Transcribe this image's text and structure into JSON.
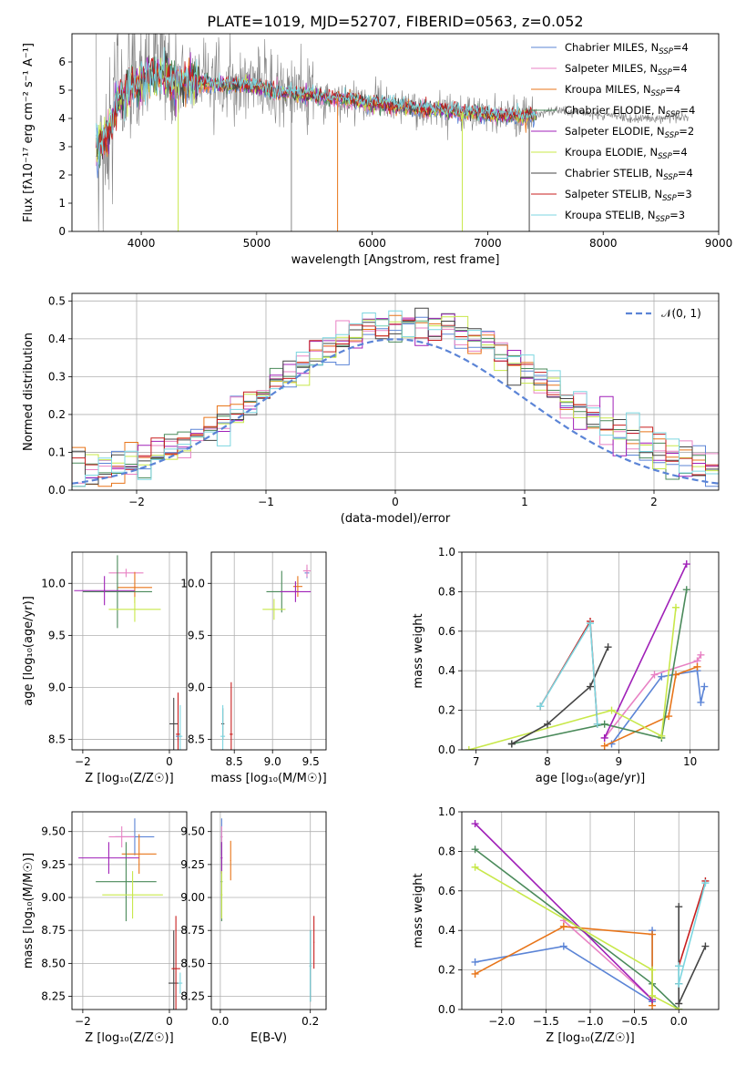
{
  "figure_title": "PLATE=1019, MJD=52707, FIBERID=0563, z=0.052",
  "colors": {
    "Chabrier MILES": "#5b84d6",
    "Salpeter MILES": "#e882c4",
    "Kroupa MILES": "#e8751a",
    "Chabrier ELODIE": "#4a8a5a",
    "Salpeter ELODIE": "#a020b8",
    "Kroupa ELODIE": "#c8e84a",
    "Chabrier STELIB": "#444444",
    "Salpeter STELIB": "#c81e1e",
    "Kroupa STELIB": "#7cd6e0",
    "data": "#808080",
    "grid": "#b0b0b0"
  },
  "chart_data": [
    {
      "id": "spectrum",
      "type": "line",
      "title": "PLATE=1019, MJD=52707, FIBERID=0563, z=0.052",
      "xlabel": "wavelength [Angstrom, rest frame]",
      "ylabel": "Flux [fλ10⁻¹⁷ erg cm⁻² s⁻¹ A⁻¹]",
      "xlim": [
        3400,
        9000
      ],
      "ylim": [
        0,
        7
      ],
      "xticks": [
        4000,
        5000,
        6000,
        7000,
        8000,
        9000
      ],
      "yticks": [
        0,
        1,
        2,
        3,
        4,
        5,
        6
      ],
      "grid": false,
      "legend_location": "upper right",
      "legend": [
        {
          "label": "Chabrier MILES, N",
          "sub": "SSP",
          "tail": "=4",
          "model": "Chabrier MILES"
        },
        {
          "label": "Salpeter MILES, N",
          "sub": "SSP",
          "tail": "=4",
          "model": "Salpeter MILES"
        },
        {
          "label": "Kroupa MILES, N",
          "sub": "SSP",
          "tail": "=4",
          "model": "Kroupa MILES"
        },
        {
          "label": "Chabrier ELODIE, N",
          "sub": "SSP",
          "tail": "=4",
          "model": "Chabrier ELODIE"
        },
        {
          "label": "Salpeter ELODIE, N",
          "sub": "SSP",
          "tail": "=2",
          "model": "Salpeter ELODIE"
        },
        {
          "label": "Kroupa ELODIE, N",
          "sub": "SSP",
          "tail": "=4",
          "model": "Kroupa ELODIE"
        },
        {
          "label": "Chabrier STELIB, N",
          "sub": "SSP",
          "tail": "=4",
          "model": "Chabrier STELIB"
        },
        {
          "label": "Salpeter STELIB, N",
          "sub": "SSP",
          "tail": "=3",
          "model": "Salpeter STELIB"
        },
        {
          "label": "Kroupa STELIB, N",
          "sub": "SSP",
          "tail": "=3",
          "model": "Kroupa STELIB"
        }
      ],
      "continuum": [
        [
          3610,
          3.0
        ],
        [
          3700,
          3.3
        ],
        [
          3800,
          4.6
        ],
        [
          3900,
          5.1
        ],
        [
          4000,
          5.2
        ],
        [
          4100,
          5.5
        ],
        [
          4200,
          5.6
        ],
        [
          4300,
          5.2
        ],
        [
          4400,
          5.4
        ],
        [
          4500,
          5.3
        ],
        [
          4600,
          5.2
        ],
        [
          4700,
          5.2
        ],
        [
          4800,
          5.2
        ],
        [
          4900,
          5.2
        ],
        [
          5000,
          5.1
        ],
        [
          5100,
          5.0
        ],
        [
          5200,
          4.9
        ],
        [
          5300,
          4.9
        ],
        [
          5400,
          4.85
        ],
        [
          5500,
          4.8
        ],
        [
          5600,
          4.75
        ],
        [
          5700,
          4.7
        ],
        [
          5800,
          4.65
        ],
        [
          5900,
          4.55
        ],
        [
          6000,
          4.55
        ],
        [
          6100,
          4.5
        ],
        [
          6200,
          4.45
        ],
        [
          6300,
          4.4
        ],
        [
          6400,
          4.35
        ],
        [
          6500,
          4.3
        ],
        [
          6600,
          4.3
        ],
        [
          6700,
          4.25
        ],
        [
          6800,
          4.2
        ],
        [
          6900,
          4.2
        ],
        [
          7000,
          4.15
        ],
        [
          7100,
          4.1
        ],
        [
          7200,
          4.1
        ],
        [
          7300,
          4.05
        ],
        [
          7400,
          4.1
        ],
        [
          7500,
          4.2
        ],
        [
          7600,
          4.3
        ],
        [
          7700,
          4.25
        ],
        [
          7800,
          4.2
        ],
        [
          7900,
          4.15
        ],
        [
          8000,
          4.1
        ],
        [
          8100,
          4.1
        ],
        [
          8200,
          4.05
        ],
        [
          8300,
          4.0
        ],
        [
          8400,
          4.0
        ],
        [
          8500,
          4.0
        ],
        [
          8600,
          4.05
        ],
        [
          8700,
          4.0
        ],
        [
          8740,
          4.0
        ]
      ],
      "model_range": [
        3610,
        7420
      ],
      "spikes": [
        [
          4320,
          0
        ],
        [
          5300,
          0
        ],
        [
          5700,
          0
        ],
        [
          6780,
          0
        ],
        [
          7360,
          0
        ]
      ]
    },
    {
      "id": "residuals",
      "type": "step",
      "xlabel": "(data-model)/error",
      "ylabel": "Normed distribution",
      "xlim": [
        -2.5,
        2.5
      ],
      "ylim": [
        0,
        0.52
      ],
      "xticks": [
        -2,
        -1,
        0,
        1,
        2
      ],
      "yticks": [
        0.0,
        0.1,
        0.2,
        0.3,
        0.4,
        0.5
      ],
      "grid": true,
      "legend_location": "upper right",
      "reference_label": "𝒩(0, 1)",
      "bins": 49,
      "models": [
        "Chabrier MILES",
        "Salpeter MILES",
        "Kroupa MILES",
        "Chabrier ELODIE",
        "Salpeter ELODIE",
        "Kroupa ELODIE",
        "Chabrier STELIB",
        "Salpeter STELIB",
        "Kroupa STELIB"
      ]
    },
    {
      "id": "age_vs_Z",
      "type": "errorbar",
      "xlabel": "Z [log₁₀(Z/Z☉)]",
      "ylabel": "age  [log₁₀(age/yr)]",
      "xlim": [
        -2.25,
        0.4
      ],
      "ylim": [
        8.4,
        10.3
      ],
      "xticks": [
        -2,
        0
      ],
      "yticks": [
        8.5,
        9.0,
        9.5,
        10.0
      ],
      "grid": true,
      "points": [
        {
          "model": "Chabrier MILES",
          "x": 0.2,
          "xerr": 0.05,
          "y": 8.53,
          "yerr": 0.05
        },
        {
          "model": "Salpeter MILES",
          "x": -1.0,
          "xerr": 0.4,
          "y": 10.1,
          "yerr": 0.04
        },
        {
          "model": "Kroupa MILES",
          "x": -0.8,
          "xerr": 0.4,
          "y": 9.96,
          "yerr": 0.15
        },
        {
          "model": "Chabrier ELODIE",
          "x": -1.2,
          "xerr": 0.8,
          "y": 9.92,
          "yerr": 0.35
        },
        {
          "model": "Salpeter ELODIE",
          "x": -1.5,
          "xerr": 0.7,
          "y": 9.93,
          "yerr": 0.14
        },
        {
          "model": "Kroupa ELODIE",
          "x": -0.8,
          "xerr": 0.6,
          "y": 9.75,
          "yerr": 0.12
        },
        {
          "model": "Chabrier STELIB",
          "x": 0.1,
          "xerr": 0.1,
          "y": 8.65,
          "yerr": 0.25
        },
        {
          "model": "Salpeter STELIB",
          "x": 0.2,
          "xerr": 0.05,
          "y": 8.55,
          "yerr": 0.4
        },
        {
          "model": "Kroupa STELIB",
          "x": 0.25,
          "xerr": 0.05,
          "y": 8.53,
          "yerr": 0.3
        }
      ]
    },
    {
      "id": "age_vs_mass",
      "type": "errorbar",
      "xlabel": "mass [log₁₀(M/M☉)]",
      "ylabel": "",
      "xlim": [
        8.2,
        9.7
      ],
      "ylim": [
        8.4,
        10.3
      ],
      "xticks": [
        8.5,
        9.0,
        9.5
      ],
      "yticks": [
        8.5,
        9.0,
        9.5,
        10.0
      ],
      "grid": true,
      "points": [
        {
          "model": "Chabrier MILES",
          "x": 9.45,
          "xerr": 0.03,
          "y": 10.1,
          "yerr": 0.05
        },
        {
          "model": "Salpeter MILES",
          "x": 9.45,
          "xerr": 0.05,
          "y": 10.12,
          "yerr": 0.06
        },
        {
          "model": "Kroupa MILES",
          "x": 9.33,
          "xerr": 0.06,
          "y": 9.97,
          "yerr": 0.1
        },
        {
          "model": "Chabrier ELODIE",
          "x": 9.12,
          "xerr": 0.2,
          "y": 9.92,
          "yerr": 0.2
        },
        {
          "model": "Salpeter ELODIE",
          "x": 9.3,
          "xerr": 0.2,
          "y": 9.92,
          "yerr": 0.1
        },
        {
          "model": "Kroupa ELODIE",
          "x": 9.02,
          "xerr": 0.15,
          "y": 9.75,
          "yerr": 0.1
        },
        {
          "model": "Chabrier STELIB",
          "x": 8.35,
          "xerr": 0.02,
          "y": 8.65,
          "yerr": 0.15
        },
        {
          "model": "Salpeter STELIB",
          "x": 8.46,
          "xerr": 0.02,
          "y": 8.55,
          "yerr": 0.5
        },
        {
          "model": "Kroupa STELIB",
          "x": 8.35,
          "xerr": 0.03,
          "y": 8.53,
          "yerr": 0.3
        }
      ]
    },
    {
      "id": "mass_weight_vs_age",
      "type": "line",
      "xlabel": "age  [log₁₀(age/yr)]",
      "ylabel": "mass weight",
      "xlim": [
        6.8,
        10.4
      ],
      "ylim": [
        0,
        1
      ],
      "xticks": [
        7,
        8,
        9,
        10
      ],
      "yticks": [
        0.0,
        0.2,
        0.4,
        0.6,
        0.8,
        1.0
      ],
      "grid": true,
      "series": [
        {
          "model": "Chabrier MILES",
          "x": [
            8.9,
            9.6,
            10.1,
            10.15,
            10.2
          ],
          "y": [
            0.03,
            0.37,
            0.4,
            0.24,
            0.32
          ]
        },
        {
          "model": "Salpeter MILES",
          "x": [
            8.8,
            9.5,
            10.1,
            10.15
          ],
          "y": [
            0.06,
            0.38,
            0.45,
            0.48
          ]
        },
        {
          "model": "Kroupa MILES",
          "x": [
            8.8,
            9.7,
            9.8,
            10.1
          ],
          "y": [
            0.02,
            0.17,
            0.38,
            0.42
          ]
        },
        {
          "model": "Chabrier ELODIE",
          "x": [
            7.5,
            8.8,
            9.6,
            9.95
          ],
          "y": [
            0.03,
            0.13,
            0.06,
            0.81
          ]
        },
        {
          "model": "Salpeter ELODIE",
          "x": [
            8.8,
            9.95
          ],
          "y": [
            0.06,
            0.94
          ]
        },
        {
          "model": "Kroupa ELODIE",
          "x": [
            6.9,
            8.9,
            9.6,
            9.8
          ],
          "y": [
            0.0,
            0.2,
            0.07,
            0.72
          ]
        },
        {
          "model": "Chabrier STELIB",
          "x": [
            7.5,
            8.0,
            8.6,
            8.85
          ],
          "y": [
            0.03,
            0.13,
            0.32,
            0.52
          ]
        },
        {
          "model": "Salpeter STELIB",
          "x": [
            7.9,
            8.6,
            8.7
          ],
          "y": [
            0.22,
            0.65,
            0.13
          ]
        },
        {
          "model": "Kroupa STELIB",
          "x": [
            7.9,
            8.6,
            8.7
          ],
          "y": [
            0.22,
            0.64,
            0.13
          ]
        }
      ]
    },
    {
      "id": "mass_vs_Z",
      "type": "errorbar",
      "xlabel": "Z [log₁₀(Z/Z☉)]",
      "ylabel": "mass [log₁₀(M/M☉)]",
      "xlim": [
        -2.25,
        0.4
      ],
      "ylim": [
        8.15,
        9.65
      ],
      "xticks": [
        -2,
        0
      ],
      "yticks": [
        8.25,
        8.5,
        8.75,
        9.0,
        9.25,
        9.5
      ],
      "grid": true,
      "points": [
        {
          "model": "Chabrier MILES",
          "x": -0.8,
          "xerr": 0.45,
          "y": 9.46,
          "yerr": 0.14
        },
        {
          "model": "Salpeter MILES",
          "x": -1.1,
          "xerr": 0.3,
          "y": 9.46,
          "yerr": 0.08
        },
        {
          "model": "Kroupa MILES",
          "x": -0.7,
          "xerr": 0.4,
          "y": 9.33,
          "yerr": 0.15
        },
        {
          "model": "Chabrier ELODIE",
          "x": -1.0,
          "xerr": 0.7,
          "y": 9.12,
          "yerr": 0.3
        },
        {
          "model": "Salpeter ELODIE",
          "x": -1.4,
          "xerr": 0.7,
          "y": 9.3,
          "yerr": 0.12
        },
        {
          "model": "Kroupa ELODIE",
          "x": -0.85,
          "xerr": 0.7,
          "y": 9.02,
          "yerr": 0.18
        },
        {
          "model": "Chabrier STELIB",
          "x": 0.1,
          "xerr": 0.12,
          "y": 8.35,
          "yerr": 0.4
        },
        {
          "model": "Salpeter STELIB",
          "x": 0.15,
          "xerr": 0.1,
          "y": 8.46,
          "yerr": 0.4
        },
        {
          "model": "Kroupa STELIB",
          "x": 0.25,
          "xerr": 0.05,
          "y": 8.35,
          "yerr": 0.08
        }
      ]
    },
    {
      "id": "mass_vs_ebv",
      "type": "errorbar",
      "xlabel": "E(B-V)",
      "ylabel": "",
      "xlim": [
        -0.02,
        0.235
      ],
      "ylim": [
        8.15,
        9.65
      ],
      "xticks": [
        0.0,
        0.2
      ],
      "yticks": [
        8.25,
        8.5,
        8.75,
        9.0,
        9.25,
        9.5
      ],
      "grid": true,
      "points": [
        {
          "model": "Chabrier MILES",
          "x": 0.003,
          "xerr": 0.002,
          "y": 9.46,
          "yerr": 0.14
        },
        {
          "model": "Salpeter MILES",
          "x": 0.003,
          "xerr": 0.002,
          "y": 9.46,
          "yerr": 0.08
        },
        {
          "model": "Kroupa MILES",
          "x": 0.023,
          "xerr": 0.001,
          "y": 9.28,
          "yerr": 0.15
        },
        {
          "model": "Chabrier ELODIE",
          "x": 0.003,
          "xerr": 0.002,
          "y": 9.12,
          "yerr": 0.3
        },
        {
          "model": "Salpeter ELODIE",
          "x": 0.003,
          "xerr": 0.002,
          "y": 9.3,
          "yerr": 0.12
        },
        {
          "model": "Kroupa ELODIE",
          "x": 0.003,
          "xerr": 0.002,
          "y": 9.02,
          "yerr": 0.18
        },
        {
          "model": "Chabrier STELIB",
          "x": 0.2,
          "xerr": 0.002,
          "y": 8.48,
          "yerr": 0.27
        },
        {
          "model": "Salpeter STELIB",
          "x": 0.208,
          "xerr": 0.001,
          "y": 8.66,
          "yerr": 0.2
        },
        {
          "model": "Kroupa STELIB",
          "x": 0.2,
          "xerr": 0.002,
          "y": 8.48,
          "yerr": 0.27
        }
      ]
    },
    {
      "id": "mass_weight_vs_Z",
      "type": "line",
      "xlabel": "Z [log₁₀(Z/Z☉)]",
      "ylabel": "mass weight",
      "xlim": [
        -2.45,
        0.45
      ],
      "ylim": [
        0,
        1
      ],
      "xticks": [
        -2.0,
        -1.5,
        -1.0,
        -0.5,
        0.0
      ],
      "yticks": [
        0.0,
        0.2,
        0.4,
        0.6,
        0.8,
        1.0
      ],
      "grid": true,
      "series": [
        {
          "model": "Chabrier MILES",
          "x": [
            -2.3,
            -1.3,
            -0.3,
            -0.3
          ],
          "y": [
            0.24,
            0.32,
            0.04,
            0.4
          ]
        },
        {
          "model": "Salpeter MILES",
          "x": [
            -1.3,
            -0.3
          ],
          "y": [
            0.45,
            0.05
          ]
        },
        {
          "model": "Kroupa MILES",
          "x": [
            -2.3,
            -1.3,
            -0.3,
            -0.3
          ],
          "y": [
            0.18,
            0.42,
            0.38,
            0.02
          ]
        },
        {
          "model": "Chabrier ELODIE",
          "x": [
            -2.3,
            -0.3,
            0.0
          ],
          "y": [
            0.81,
            0.13,
            0.0
          ]
        },
        {
          "model": "Salpeter ELODIE",
          "x": [
            -2.3,
            -0.3
          ],
          "y": [
            0.94,
            0.05
          ]
        },
        {
          "model": "Kroupa ELODIE",
          "x": [
            -2.3,
            -0.3,
            -0.3,
            0.0
          ],
          "y": [
            0.72,
            0.2,
            0.07,
            0.0
          ]
        },
        {
          "model": "Chabrier STELIB",
          "x": [
            0.0,
            0.0,
            0.0,
            0.3
          ],
          "y": [
            0.52,
            0.13,
            0.03,
            0.32
          ]
        },
        {
          "model": "Salpeter STELIB",
          "x": [
            0.0,
            0.3
          ],
          "y": [
            0.22,
            0.65
          ]
        },
        {
          "model": "Kroupa STELIB",
          "x": [
            0.0,
            0.0,
            0.3
          ],
          "y": [
            0.22,
            0.13,
            0.64
          ]
        }
      ]
    }
  ]
}
